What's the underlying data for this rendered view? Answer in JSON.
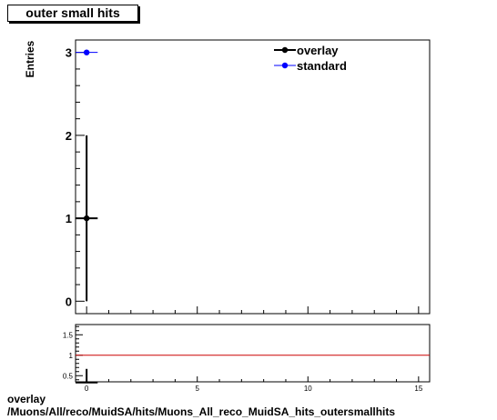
{
  "chart_data": {
    "type": "scatter",
    "title": "outer small hits",
    "ylabel": "Entries",
    "xlim": [
      -0.5,
      15.5
    ],
    "ylim": [
      -0.15,
      3.15
    ],
    "x_ticks": [
      0,
      5,
      10,
      15
    ],
    "y_ticks": [
      0,
      1,
      2,
      3
    ],
    "legend": {
      "position": "top-right",
      "entries": [
        "overlay",
        "standard"
      ]
    },
    "series": [
      {
        "name": "overlay",
        "color": "#000000",
        "marker": "circle",
        "points": [
          {
            "x": 0,
            "y": 1,
            "xerr": 0.5,
            "yerr": 1
          }
        ]
      },
      {
        "name": "standard",
        "color": "#0000ff",
        "marker": "circle",
        "points": [
          {
            "x": 0,
            "y": 3,
            "xerr": 0.5,
            "yerr": 0
          }
        ]
      }
    ],
    "ratio": {
      "ylim": [
        0.35,
        1.75
      ],
      "y_ticks": [
        0.5,
        1,
        1.5
      ],
      "x_ticks": [
        0,
        5,
        10,
        15
      ],
      "reference_line": {
        "y": 1,
        "color": "#cc0000"
      },
      "points": [
        {
          "x": 0,
          "y": 0.333,
          "xerr": 0.5,
          "yerr": 0.333
        }
      ]
    }
  },
  "footer": {
    "line1": "overlay",
    "line2": "/Muons/All/reco/MuidSA/hits/Muons_All_reco_MuidSA_hits_outersmallhits"
  }
}
